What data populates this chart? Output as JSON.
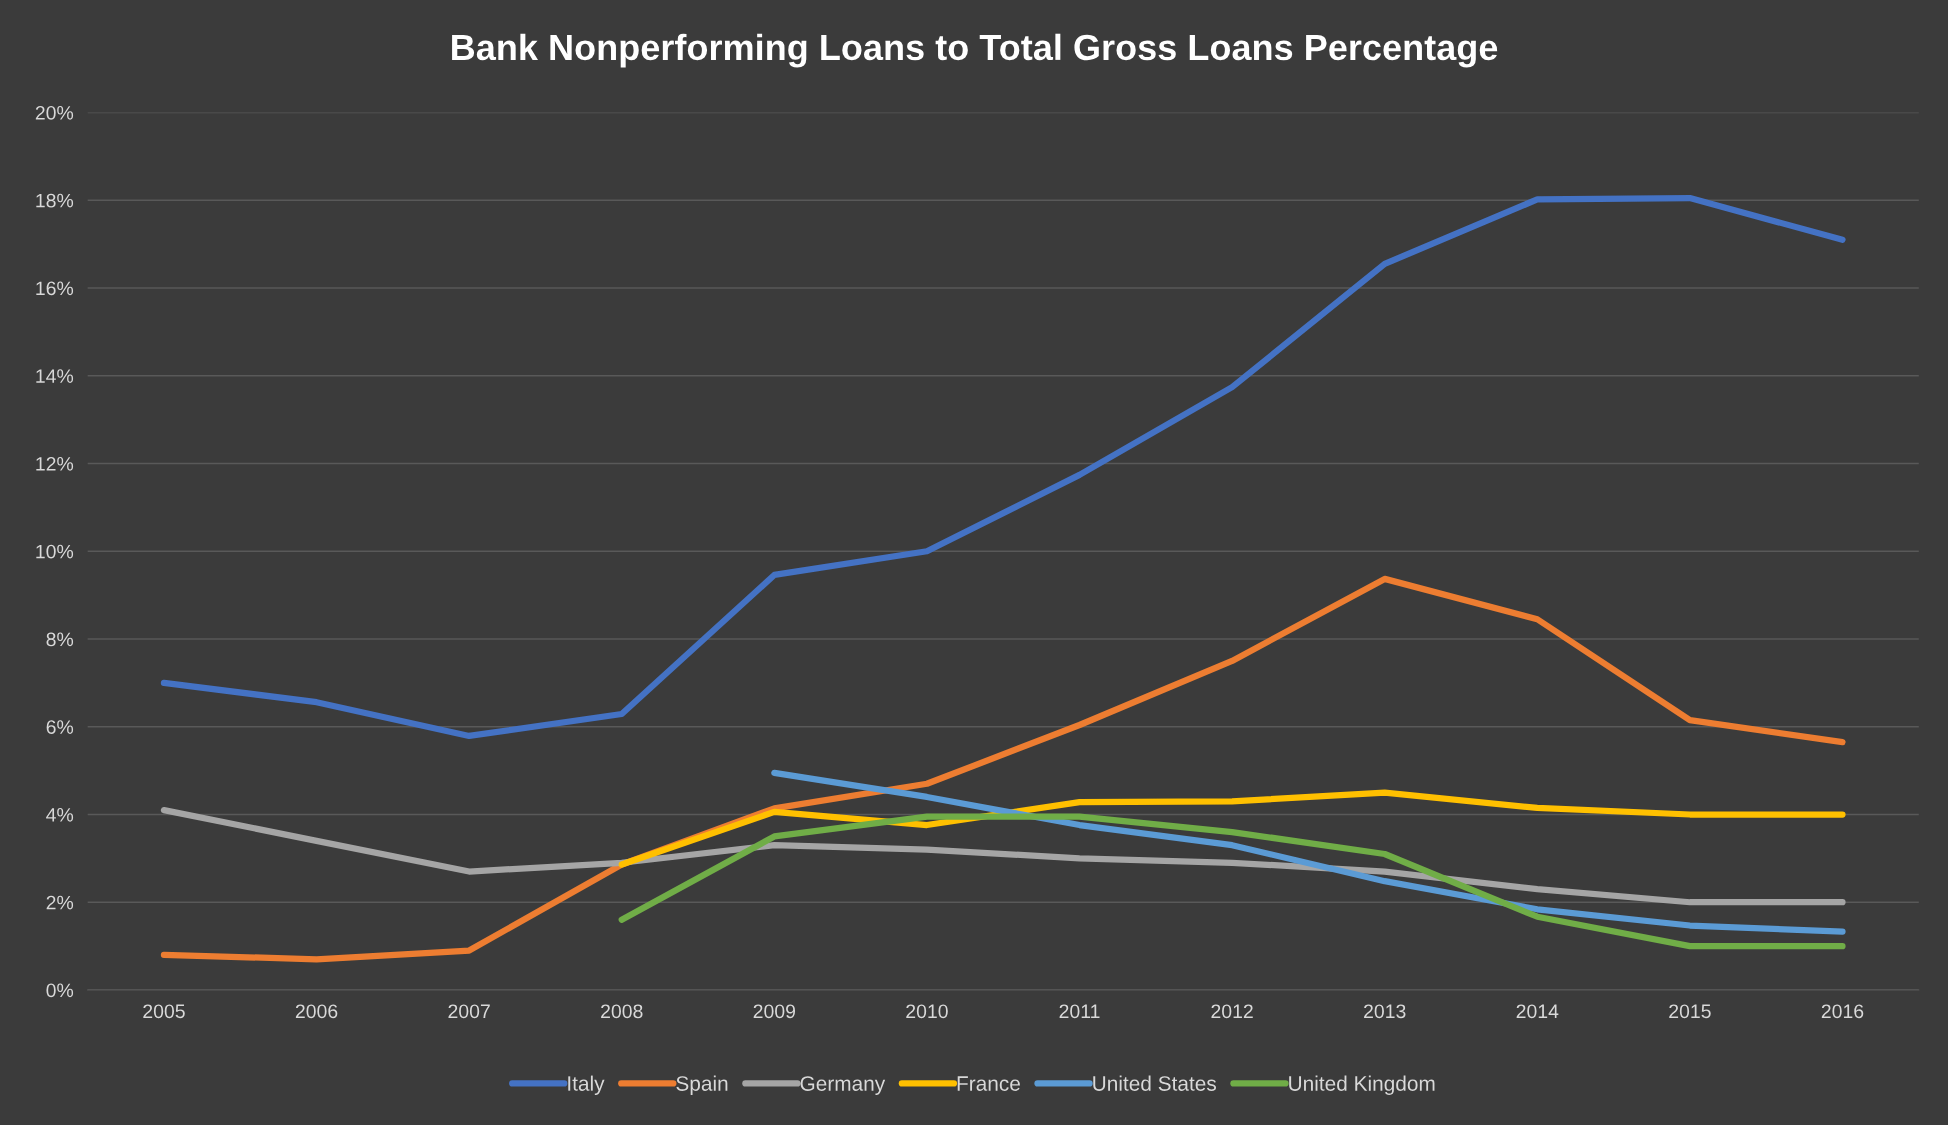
{
  "chart_data": {
    "type": "line",
    "title": "Bank Nonperforming Loans to Total Gross Loans Percentage",
    "categories": [
      "2005",
      "2006",
      "2007",
      "2008",
      "2009",
      "2010",
      "2011",
      "2012",
      "2013",
      "2014",
      "2015",
      "2016"
    ],
    "series": [
      {
        "name": "Italy",
        "color": "#4472c4",
        "values": [
          7.0,
          6.56,
          5.79,
          6.29,
          9.46,
          10.0,
          11.74,
          13.74,
          16.55,
          18.02,
          18.05,
          17.1
        ]
      },
      {
        "name": "Spain",
        "color": "#ed7d31",
        "values": [
          0.8,
          0.7,
          0.9,
          2.86,
          4.14,
          4.7,
          6.04,
          7.5,
          9.37,
          8.45,
          6.15,
          5.65
        ]
      },
      {
        "name": "Germany",
        "color": "#a5a5a5",
        "values": [
          4.1,
          3.4,
          2.7,
          2.9,
          3.3,
          3.2,
          3.0,
          2.9,
          2.7,
          2.3,
          2.0,
          2.0
        ]
      },
      {
        "name": "France",
        "color": "#ffc000",
        "values": [
          null,
          null,
          null,
          2.86,
          4.06,
          3.76,
          4.28,
          4.3,
          4.5,
          4.15,
          4.0,
          4.0
        ]
      },
      {
        "name": "United States",
        "color": "#5b9bd5",
        "values": [
          null,
          null,
          null,
          null,
          4.95,
          4.4,
          3.76,
          3.3,
          2.48,
          1.84,
          1.47,
          1.33
        ]
      },
      {
        "name": "United Kingdom",
        "color": "#70ad47",
        "values": [
          null,
          null,
          null,
          1.6,
          3.5,
          3.95,
          3.95,
          3.6,
          3.1,
          1.67,
          1.0,
          1.0
        ]
      }
    ],
    "ylim": [
      0,
      20
    ],
    "yticks": [
      {
        "value": 0,
        "label": "0%"
      },
      {
        "value": 2,
        "label": "2%"
      },
      {
        "value": 4,
        "label": "4%"
      },
      {
        "value": 6,
        "label": "6%"
      },
      {
        "value": 8,
        "label": "8%"
      },
      {
        "value": 10,
        "label": "10%"
      },
      {
        "value": 12,
        "label": "12%"
      },
      {
        "value": 14,
        "label": "14%"
      },
      {
        "value": 16,
        "label": "16%"
      },
      {
        "value": 18,
        "label": "18%"
      },
      {
        "value": 20,
        "label": "20%"
      }
    ],
    "grid": "y",
    "legend": "bottom",
    "marker": "none",
    "line_style": "solid"
  }
}
